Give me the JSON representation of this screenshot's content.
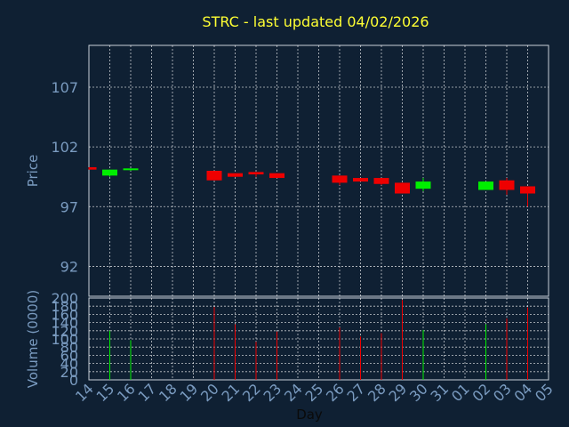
{
  "title": "STRC - last updated 04/02/2026",
  "chart_data": [
    {
      "type": "candlestick",
      "name": "price",
      "ylabel": "Price",
      "ylim": [
        89.5,
        110.5
      ],
      "yticks": [
        92,
        97,
        102,
        107
      ],
      "grid": true,
      "colors": {
        "up": "#00ee00",
        "down": "#ee0000",
        "background": "#0f2033",
        "grid": "#ffffff",
        "axis_text": "#7a9bc0",
        "title": "#ffff33"
      },
      "candles": [
        {
          "x": "14",
          "open": 100.3,
          "high": 100.3,
          "low": 100.1,
          "close": 100.1
        },
        {
          "x": "15",
          "open": 99.6,
          "high": 100.1,
          "low": 99.5,
          "close": 100.1
        },
        {
          "x": "16",
          "open": 100.1,
          "high": 100.2,
          "low": 100.0,
          "close": 100.2
        },
        {
          "x": "20",
          "open": 100.0,
          "high": 100.0,
          "low": 99.2,
          "close": 99.2
        },
        {
          "x": "21",
          "open": 99.8,
          "high": 99.8,
          "low": 99.5,
          "close": 99.5
        },
        {
          "x": "22",
          "open": 99.9,
          "high": 99.9,
          "low": 99.5,
          "close": 99.7
        },
        {
          "x": "23",
          "open": 99.8,
          "high": 99.8,
          "low": 99.4,
          "close": 99.4
        },
        {
          "x": "26",
          "open": 99.6,
          "high": 99.6,
          "low": 98.8,
          "close": 99.0
        },
        {
          "x": "27",
          "open": 99.4,
          "high": 99.4,
          "low": 99.1,
          "close": 99.1
        },
        {
          "x": "28",
          "open": 99.4,
          "high": 99.4,
          "low": 98.8,
          "close": 98.9
        },
        {
          "x": "29",
          "open": 99.0,
          "high": 99.0,
          "low": 98.1,
          "close": 98.1
        },
        {
          "x": "30",
          "open": 98.5,
          "high": 99.4,
          "low": 98.3,
          "close": 99.1
        },
        {
          "x": "02",
          "open": 98.4,
          "high": 99.1,
          "low": 98.4,
          "close": 99.1
        },
        {
          "x": "03",
          "open": 99.2,
          "high": 99.4,
          "low": 98.0,
          "close": 98.4
        },
        {
          "x": "04",
          "open": 98.7,
          "high": 98.7,
          "low": 97.0,
          "close": 98.1
        }
      ]
    },
    {
      "type": "bar",
      "name": "volume",
      "ylabel": "Volume (0000)",
      "ylim": [
        0,
        200
      ],
      "yticks": [
        0,
        20,
        40,
        60,
        80,
        100,
        120,
        140,
        160,
        180,
        200
      ],
      "grid": true,
      "bars": [
        {
          "x": "14",
          "value": 0,
          "direction": "down"
        },
        {
          "x": "15",
          "value": 120,
          "direction": "up"
        },
        {
          "x": "16",
          "value": 97,
          "direction": "up"
        },
        {
          "x": "20",
          "value": 178,
          "direction": "down"
        },
        {
          "x": "21",
          "value": 136,
          "direction": "down"
        },
        {
          "x": "22",
          "value": 93,
          "direction": "down"
        },
        {
          "x": "23",
          "value": 118,
          "direction": "down"
        },
        {
          "x": "26",
          "value": 128,
          "direction": "down"
        },
        {
          "x": "27",
          "value": 106,
          "direction": "down"
        },
        {
          "x": "28",
          "value": 114,
          "direction": "down"
        },
        {
          "x": "29",
          "value": 195,
          "direction": "down"
        },
        {
          "x": "30",
          "value": 122,
          "direction": "up"
        },
        {
          "x": "02",
          "value": 136,
          "direction": "up"
        },
        {
          "x": "03",
          "value": 150,
          "direction": "down"
        },
        {
          "x": "04",
          "value": 177,
          "direction": "down"
        }
      ]
    }
  ],
  "x_axis": {
    "xlabel": "Day",
    "ticks": [
      "14",
      "15",
      "16",
      "17",
      "18",
      "19",
      "20",
      "21",
      "22",
      "23",
      "24",
      "25",
      "26",
      "27",
      "28",
      "29",
      "30",
      "31",
      "01",
      "02",
      "03",
      "04",
      "05"
    ]
  }
}
